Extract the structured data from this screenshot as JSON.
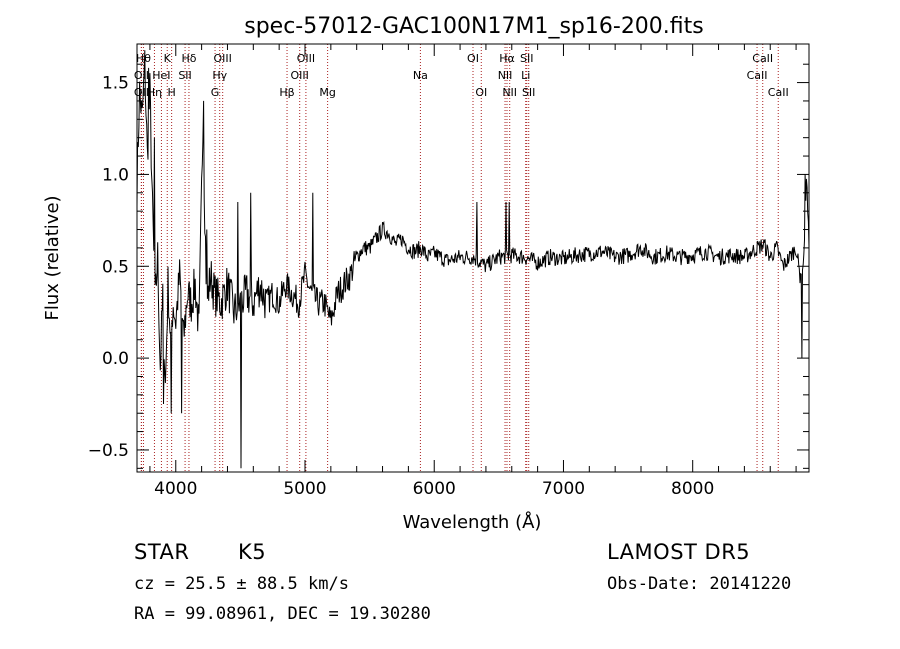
{
  "chart_data": {
    "type": "line",
    "title": "spec-57012-GAC100N17M1_sp16-200.fits",
    "xlabel": "Wavelength (Å)",
    "ylabel": "Flux (relative)",
    "xlim": [
      3700,
      8900
    ],
    "ylim": [
      -0.62,
      1.71
    ],
    "x_ticks": [
      4000,
      5000,
      6000,
      7000,
      8000
    ],
    "y_ticks": [
      -0.5,
      0.0,
      0.5,
      1.0,
      1.5
    ],
    "x_tick_labels": [
      "4000",
      "5000",
      "6000",
      "7000",
      "8000"
    ],
    "y_tick_labels": [
      "−0.5",
      "0.0",
      "0.5",
      "1.0",
      "1.5"
    ],
    "grid": false,
    "line_color": "#000000",
    "marker_color": "#aa2222",
    "series": [
      {
        "x": [
          3700,
          3720,
          3740,
          3760,
          3780,
          3800,
          3820,
          3840,
          3860,
          3880,
          3900,
          3920,
          3940,
          3960,
          3980,
          4000,
          4030,
          4060,
          4090,
          4120,
          4150,
          4180,
          4210,
          4240,
          4270,
          4300,
          4350,
          4400,
          4450,
          4500,
          4550,
          4600,
          4650,
          4700,
          4750,
          4800,
          4850,
          4900,
          4950,
          5000,
          5050,
          5100,
          5150,
          5200,
          5250,
          5300,
          5350,
          5400,
          5450,
          5500,
          5550,
          5600,
          5650,
          5700,
          5750,
          5800,
          5850,
          5900,
          5950,
          6000,
          6100,
          6200,
          6300,
          6400,
          6500,
          6600,
          6700,
          6800,
          6900,
          7000,
          7100,
          7200,
          7300,
          7400,
          7500,
          7600,
          7700,
          7800,
          7900,
          8000,
          8100,
          8200,
          8300,
          8400,
          8500,
          8550,
          8600,
          8650,
          8700,
          8750,
          8800,
          8830,
          8860,
          8880,
          8900
        ],
        "y": [
          0.95,
          1.45,
          1.3,
          1.6,
          1.1,
          1.45,
          0.8,
          0.3,
          0.55,
          -0.05,
          0.35,
          -0.15,
          0.4,
          0.1,
          0.3,
          0.2,
          0.45,
          0.1,
          0.35,
          0.3,
          0.4,
          0.15,
          1.3,
          0.3,
          0.45,
          0.35,
          0.3,
          0.4,
          0.25,
          0.3,
          0.35,
          0.3,
          0.4,
          0.3,
          0.35,
          0.3,
          0.4,
          0.35,
          0.3,
          0.45,
          0.35,
          0.3,
          0.3,
          0.2,
          0.35,
          0.4,
          0.45,
          0.55,
          0.6,
          0.6,
          0.65,
          0.7,
          0.68,
          0.62,
          0.65,
          0.6,
          0.58,
          0.6,
          0.55,
          0.57,
          0.53,
          0.55,
          0.55,
          0.5,
          0.55,
          0.56,
          0.55,
          0.52,
          0.55,
          0.54,
          0.56,
          0.57,
          0.58,
          0.55,
          0.56,
          0.6,
          0.55,
          0.57,
          0.55,
          0.56,
          0.58,
          0.55,
          0.56,
          0.55,
          0.6,
          0.62,
          0.55,
          0.6,
          0.5,
          0.55,
          0.6,
          0.45,
          0.55,
          1.0,
          0.6
        ],
        "spikes": [
          {
            "x": 3790,
            "y": 1.58
          },
          {
            "x": 3835,
            "y": 1.2
          },
          {
            "x": 3905,
            "y": -0.25
          },
          {
            "x": 3965,
            "y": -0.3
          },
          {
            "x": 4045,
            "y": -0.3
          },
          {
            "x": 4213,
            "y": 1.4
          },
          {
            "x": 4240,
            "y": 0.7
          },
          {
            "x": 4480,
            "y": 0.85
          },
          {
            "x": 4505,
            "y": -0.6
          },
          {
            "x": 4580,
            "y": 0.9
          },
          {
            "x": 5060,
            "y": 0.9
          },
          {
            "x": 6330,
            "y": 0.85
          },
          {
            "x": 6555,
            "y": 0.85
          },
          {
            "x": 6580,
            "y": 0.85
          },
          {
            "x": 8845,
            "y": 0.0
          },
          {
            "x": 8868,
            "y": 1.0
          }
        ]
      }
    ],
    "line_markers": [
      {
        "x": 3750,
        "label": "Hθ",
        "row": 0
      },
      {
        "x": 3734,
        "label": "OII",
        "row": 1
      },
      {
        "x": 3734,
        "label": "OII",
        "row": 2
      },
      {
        "x": 3835,
        "label": "Hη",
        "row": 2
      },
      {
        "x": 3889,
        "label": "HeI",
        "row": 1
      },
      {
        "x": 3934,
        "label": "K",
        "row": 0
      },
      {
        "x": 3968,
        "label": "H",
        "row": 2
      },
      {
        "x": 4072,
        "label": "SII",
        "row": 1
      },
      {
        "x": 4102,
        "label": "Hδ",
        "row": 0
      },
      {
        "x": 4304,
        "label": "G",
        "row": 2
      },
      {
        "x": 4340,
        "label": "Hγ",
        "row": 1
      },
      {
        "x": 4363,
        "label": "OIII",
        "row": 0
      },
      {
        "x": 4861,
        "label": "Hβ",
        "row": 2
      },
      {
        "x": 4959,
        "label": "OIII",
        "row": 1
      },
      {
        "x": 5007,
        "label": "OIII",
        "row": 0
      },
      {
        "x": 5175,
        "label": "Mg",
        "row": 2
      },
      {
        "x": 5893,
        "label": "Na",
        "row": 1
      },
      {
        "x": 6300,
        "label": "OI",
        "row": 0
      },
      {
        "x": 6364,
        "label": "OI",
        "row": 2
      },
      {
        "x": 6548,
        "label": "NII",
        "row": 1
      },
      {
        "x": 6563,
        "label": "Hα",
        "row": 0
      },
      {
        "x": 6584,
        "label": "NII",
        "row": 2
      },
      {
        "x": 6708,
        "label": "Li",
        "row": 1
      },
      {
        "x": 6716,
        "label": "SII",
        "row": 0
      },
      {
        "x": 6731,
        "label": "SII",
        "row": 2
      },
      {
        "x": 8498,
        "label": "CaII",
        "row": 1
      },
      {
        "x": 8542,
        "label": "CaII",
        "row": 0
      },
      {
        "x": 8662,
        "label": "CaII",
        "row": 2
      }
    ]
  },
  "info": {
    "class_label": "STAR",
    "subclass_label": "K5",
    "survey_label": "LAMOST DR5",
    "cz_text": "cz = 25.5 ± 88.5 km/s",
    "obs_date_text": "Obs-Date: 20141220",
    "radec_text": "RA =  99.08961, DEC =  19.30280"
  }
}
